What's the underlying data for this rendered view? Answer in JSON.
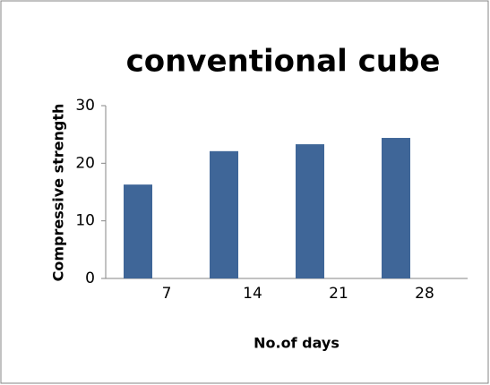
{
  "chart_data": {
    "type": "bar",
    "title": "conventional cube",
    "x_label": "No.of days",
    "y_label": "Compressive strength",
    "categories": [
      "7",
      "14",
      "21",
      "28"
    ],
    "values": [
      16.3,
      22.1,
      23.3,
      24.4
    ],
    "color": "#3f6698",
    "ylim": [
      0,
      30
    ],
    "yticks": [
      0,
      10,
      20,
      30
    ],
    "grid": false
  }
}
